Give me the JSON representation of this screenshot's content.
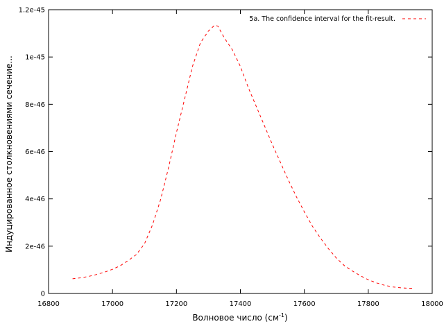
{
  "chart_data": {
    "type": "line",
    "xlabel": "Волновое число (см",
    "xlabel_sup": "-1",
    "xlabel_close": ")",
    "ylabel": "Индуцированное столкновениями сечение...",
    "xlim": [
      16800,
      18000
    ],
    "ylim": [
      0,
      1.2e-45
    ],
    "x_ticks": [
      16800,
      17000,
      17200,
      17400,
      17600,
      17800,
      18000
    ],
    "x_tick_labels": [
      "16800",
      "17000",
      "17200",
      "17400",
      "17600",
      "17800",
      "18000"
    ],
    "y_ticks": [
      0,
      2e-46,
      4e-46,
      6e-46,
      8e-46,
      1e-45,
      1.2e-45
    ],
    "y_tick_labels": [
      "0",
      "2e-46",
      "4e-46",
      "6e-46",
      "8e-46",
      "1e-45",
      "1.2e-45"
    ],
    "grid": false,
    "legend_position": "top-right",
    "series": [
      {
        "name": "5a. The confidence interval for the fit-result.",
        "color": "#ff0000",
        "style": "dashed",
        "x": [
          16875,
          16900,
          16925,
          16950,
          16975,
          17000,
          17025,
          17050,
          17075,
          17100,
          17125,
          17150,
          17175,
          17200,
          17225,
          17250,
          17275,
          17300,
          17320,
          17330,
          17350,
          17375,
          17400,
          17425,
          17450,
          17475,
          17500,
          17525,
          17550,
          17575,
          17600,
          17625,
          17650,
          17675,
          17700,
          17725,
          17750,
          17775,
          17800,
          17825,
          17850,
          17875,
          17900,
          17925,
          17940
        ],
        "y": [
          6.2e-47,
          6.6e-47,
          7.2e-47,
          8e-47,
          9e-47,
          1.02e-46,
          1.18e-46,
          1.4e-46,
          1.65e-46,
          2.1e-46,
          2.9e-46,
          3.95e-46,
          5.3e-46,
          6.8e-46,
          8.2e-46,
          9.6e-46,
          1.06e-45,
          1.11e-45,
          1.135e-45,
          1.13e-45,
          1.08e-45,
          1.03e-45,
          9.6e-46,
          8.7e-46,
          7.9e-46,
          7.1e-46,
          6.3e-46,
          5.55e-46,
          4.8e-46,
          4.1e-46,
          3.45e-46,
          2.85e-46,
          2.35e-46,
          1.9e-46,
          1.5e-46,
          1.18e-46,
          9.5e-47,
          7.5e-47,
          5.8e-47,
          4.5e-47,
          3.5e-47,
          2.8e-47,
          2.4e-47,
          2.2e-47,
          2.2e-47
        ]
      }
    ]
  }
}
